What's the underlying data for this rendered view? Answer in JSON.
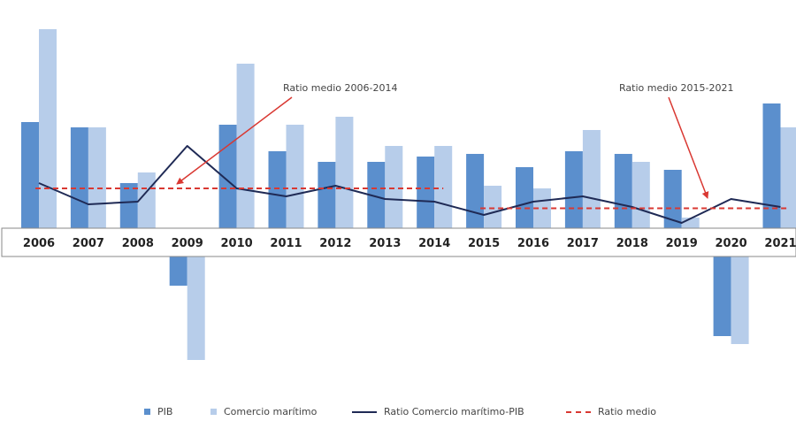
{
  "chart_data": {
    "type": "bar",
    "title": "",
    "xlabel": "",
    "ylabel": "",
    "categories": [
      "2006",
      "2007",
      "2008",
      "2009",
      "2010",
      "2011",
      "2012",
      "2013",
      "2014",
      "2015",
      "2016",
      "2017",
      "2018",
      "2019",
      "2020",
      "2021"
    ],
    "series": [
      {
        "name": "PIB",
        "kind": "bar",
        "color": "#5b8fcd",
        "values": [
          4.0,
          3.8,
          1.7,
          -1.1,
          3.9,
          2.9,
          2.5,
          2.5,
          2.7,
          2.8,
          2.3,
          2.9,
          2.8,
          2.2,
          -3.0,
          4.7
        ]
      },
      {
        "name": "Comercio marítimo",
        "kind": "bar",
        "color": "#b7cdea",
        "values": [
          7.5,
          3.8,
          2.1,
          -3.9,
          6.2,
          3.9,
          4.2,
          3.1,
          3.1,
          1.6,
          1.5,
          3.7,
          2.5,
          0.4,
          -3.3,
          3.8
        ]
      },
      {
        "name": "Ratio Comercio marítimo-PIB",
        "kind": "line",
        "color": "#1f2a55",
        "values": [
          1.7,
          0.9,
          1.0,
          3.1,
          1.5,
          1.2,
          1.6,
          1.1,
          1.0,
          0.5,
          1.0,
          1.2,
          0.8,
          0.2,
          1.1,
          0.8
        ]
      },
      {
        "name": "Ratio medio",
        "kind": "dashed",
        "color": "#d93832",
        "segments": [
          {
            "from": "2006",
            "to": "2014",
            "value": 1.5
          },
          {
            "from": "2015",
            "to": "2021",
            "value": 0.75
          }
        ]
      }
    ],
    "annotations": [
      {
        "text": "Ratio medio 2006-2014",
        "target": "2009"
      },
      {
        "text": "Ratio medio 2015-2021",
        "target": "2020"
      }
    ],
    "ylim": [
      -5.5,
      7.8
    ],
    "grid": false,
    "legend": "bottom-center"
  }
}
